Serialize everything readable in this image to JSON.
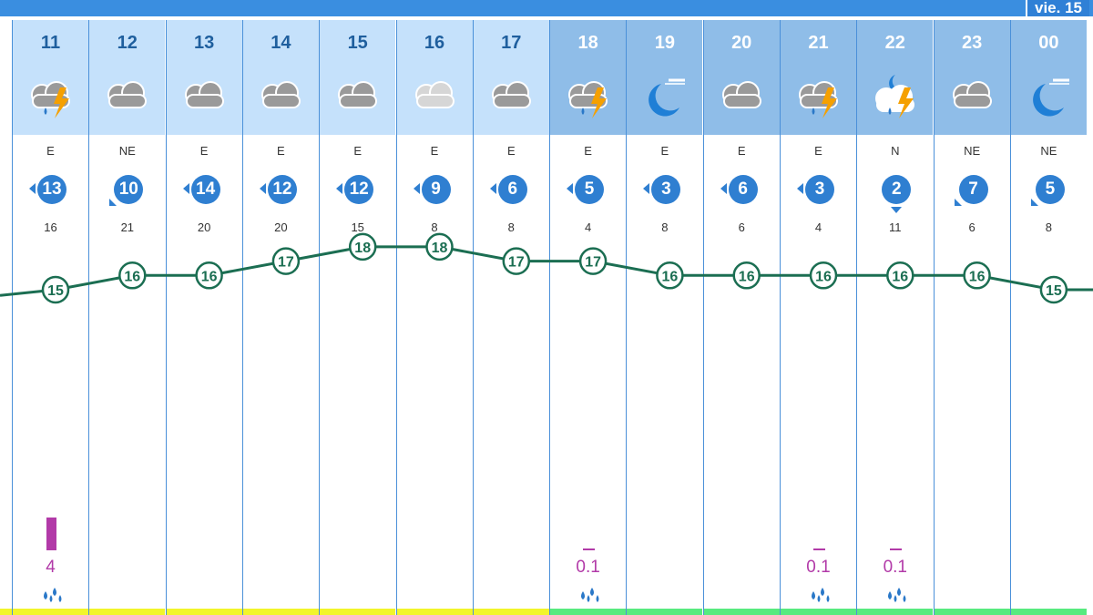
{
  "header": {
    "day_label": "vie. 15"
  },
  "colors": {
    "day_head": "#c5e1fb",
    "night_head": "#8fbde8",
    "temp_line": "#1b6e52",
    "wind_badge": "#2f7fd1",
    "precip": "#b23aa8",
    "band_yellow": "#f2f52a",
    "band_green": "#57ea7f"
  },
  "hours": [
    {
      "hour": "11",
      "night": false,
      "icon": "storm-icon",
      "wind_dir": "E",
      "wind": "13",
      "gust": "16",
      "temp": 15,
      "precip": "4",
      "precip_amount": 4,
      "band": "yellow"
    },
    {
      "hour": "12",
      "night": false,
      "icon": "cloud-icon",
      "wind_dir": "NE",
      "wind": "10",
      "gust": "21",
      "temp": 16,
      "precip": "",
      "precip_amount": 0,
      "band": "yellow"
    },
    {
      "hour": "13",
      "night": false,
      "icon": "cloud-icon",
      "wind_dir": "E",
      "wind": "14",
      "gust": "20",
      "temp": 16,
      "precip": "",
      "precip_amount": 0,
      "band": "yellow"
    },
    {
      "hour": "14",
      "night": false,
      "icon": "cloud-icon",
      "wind_dir": "E",
      "wind": "12",
      "gust": "20",
      "temp": 17,
      "precip": "",
      "precip_amount": 0,
      "band": "yellow"
    },
    {
      "hour": "15",
      "night": false,
      "icon": "cloud-icon",
      "wind_dir": "E",
      "wind": "12",
      "gust": "15",
      "temp": 18,
      "precip": "",
      "precip_amount": 0,
      "band": "yellow"
    },
    {
      "hour": "16",
      "night": false,
      "icon": "light-cloud-icon",
      "wind_dir": "E",
      "wind": "9",
      "gust": "8",
      "temp": 18,
      "precip": "",
      "precip_amount": 0,
      "band": "yellow"
    },
    {
      "hour": "17",
      "night": false,
      "icon": "cloud-icon",
      "wind_dir": "E",
      "wind": "6",
      "gust": "8",
      "temp": 17,
      "precip": "",
      "precip_amount": 0,
      "band": "yellow"
    },
    {
      "hour": "18",
      "night": true,
      "icon": "storm-icon",
      "wind_dir": "E",
      "wind": "5",
      "gust": "4",
      "temp": 17,
      "precip": "0.1",
      "precip_amount": 0.1,
      "band": "green"
    },
    {
      "hour": "19",
      "night": true,
      "icon": "moon-icon",
      "wind_dir": "E",
      "wind": "3",
      "gust": "8",
      "temp": 16,
      "precip": "",
      "precip_amount": 0,
      "band": "green"
    },
    {
      "hour": "20",
      "night": true,
      "icon": "cloud-icon",
      "wind_dir": "E",
      "wind": "6",
      "gust": "6",
      "temp": 16,
      "precip": "",
      "precip_amount": 0,
      "band": "green"
    },
    {
      "hour": "21",
      "night": true,
      "icon": "storm-icon",
      "wind_dir": "E",
      "wind": "3",
      "gust": "4",
      "temp": 16,
      "precip": "0.1",
      "precip_amount": 0.1,
      "band": "green"
    },
    {
      "hour": "22",
      "night": true,
      "icon": "moon-storm-icon",
      "wind_dir": "N",
      "wind": "2",
      "gust": "11",
      "temp": 16,
      "precip": "0.1",
      "precip_amount": 0.1,
      "band": "green"
    },
    {
      "hour": "23",
      "night": true,
      "icon": "cloud-icon",
      "wind_dir": "NE",
      "wind": "7",
      "gust": "6",
      "temp": 16,
      "precip": "",
      "precip_amount": 0,
      "band": "green"
    },
    {
      "hour": "00",
      "night": true,
      "icon": "moon-icon",
      "wind_dir": "NE",
      "wind": "5",
      "gust": "8",
      "temp": 15,
      "precip": "",
      "precip_amount": 0,
      "band": "green"
    }
  ],
  "chart_data": {
    "type": "line",
    "x": [
      "11",
      "12",
      "13",
      "14",
      "15",
      "16",
      "17",
      "18",
      "19",
      "20",
      "21",
      "22",
      "23",
      "00"
    ],
    "series": [
      {
        "values": [
          15,
          16,
          16,
          17,
          18,
          18,
          17,
          17,
          16,
          16,
          16,
          16,
          16,
          15
        ]
      }
    ]
  }
}
